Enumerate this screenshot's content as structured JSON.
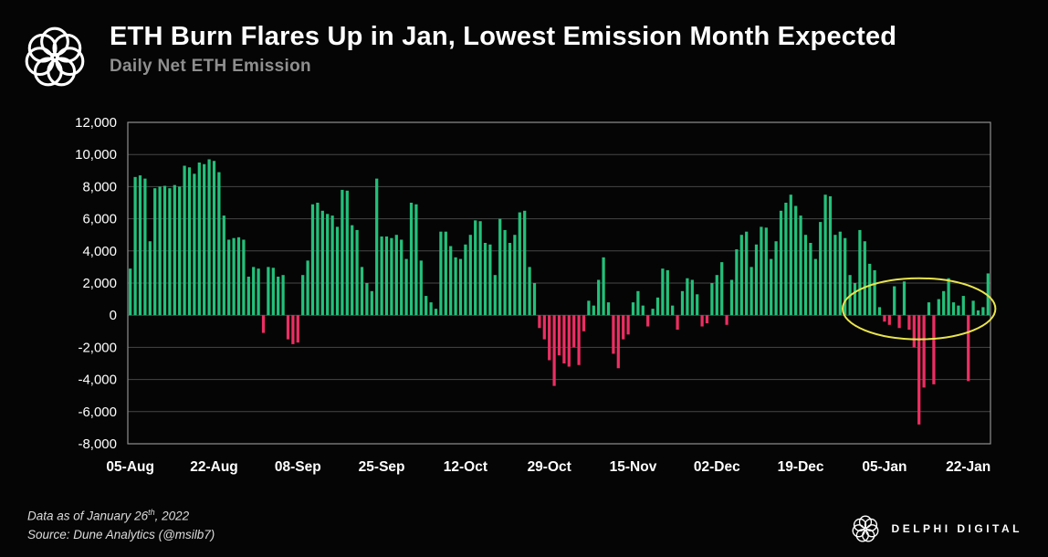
{
  "header": {
    "title": "ETH Burn Flares Up in Jan, Lowest Emission Month Expected",
    "subtitle": "Daily Net ETH Emission"
  },
  "footer": {
    "data_as_of_prefix": "Data as of January 26",
    "data_as_of_sup": "th",
    "data_as_of_suffix": ", 2022",
    "source": "Source:  Dune Analytics (@msilb7)",
    "brand": "DELPHI DIGITAL"
  },
  "colors": {
    "positive": "#24c07a",
    "negative": "#ed2e63",
    "grid": "#464646",
    "plot_border": "#8f8f8f",
    "axis_text": "#ffffff",
    "annotation": "#e8e44c",
    "background": "#050505"
  },
  "chart_data": {
    "type": "bar",
    "title": "Daily Net ETH Emission",
    "xlabel": "",
    "ylabel": "",
    "ylim": [
      -8000,
      12000
    ],
    "y_ticks": [
      12000,
      10000,
      8000,
      6000,
      4000,
      2000,
      0,
      -2000,
      -4000,
      -6000,
      -8000
    ],
    "grid": true,
    "legend": false,
    "start_date": "2021-08-05",
    "x_ticks": [
      {
        "index": 0,
        "label": "05-Aug"
      },
      {
        "index": 17,
        "label": "22-Aug"
      },
      {
        "index": 34,
        "label": "08-Sep"
      },
      {
        "index": 51,
        "label": "25-Sep"
      },
      {
        "index": 68,
        "label": "12-Oct"
      },
      {
        "index": 85,
        "label": "29-Oct"
      },
      {
        "index": 102,
        "label": "15-Nov"
      },
      {
        "index": 119,
        "label": "02-Dec"
      },
      {
        "index": 136,
        "label": "19-Dec"
      },
      {
        "index": 153,
        "label": "05-Jan"
      },
      {
        "index": 170,
        "label": "22-Jan"
      }
    ],
    "values": [
      2900,
      8600,
      8700,
      8500,
      4600,
      7900,
      8000,
      8050,
      7900,
      8100,
      8000,
      9300,
      9200,
      8800,
      9500,
      9400,
      9700,
      9600,
      8900,
      6200,
      4700,
      4800,
      4850,
      4700,
      2400,
      3000,
      2900,
      -1100,
      3000,
      2950,
      2400,
      2500,
      -1500,
      -1800,
      -1700,
      2500,
      3400,
      6900,
      7000,
      6500,
      6300,
      6200,
      5500,
      7800,
      7750,
      5600,
      5300,
      3000,
      2000,
      1500,
      8500,
      4900,
      4900,
      4800,
      5000,
      4700,
      3500,
      7000,
      6900,
      3400,
      1200,
      800,
      400,
      5200,
      5200,
      4300,
      3600,
      3500,
      4400,
      5000,
      5900,
      5850,
      4500,
      4400,
      2500,
      6000,
      5300,
      4500,
      5000,
      6400,
      6500,
      3000,
      2000,
      -800,
      -1500,
      -2800,
      -4400,
      -2500,
      -3000,
      -3200,
      -2000,
      -3100,
      -1000,
      900,
      600,
      2200,
      3600,
      800,
      -2400,
      -3300,
      -1500,
      -1200,
      800,
      1500,
      600,
      -700,
      400,
      1100,
      2900,
      2800,
      600,
      -900,
      1500,
      2300,
      2200,
      1300,
      -700,
      -500,
      2000,
      2500,
      3300,
      -600,
      2200,
      4100,
      5000,
      5200,
      3000,
      4400,
      5500,
      5450,
      3500,
      4600,
      6500,
      7000,
      7500,
      6800,
      6200,
      5000,
      4500,
      3500,
      5800,
      7500,
      7400,
      5000,
      5200,
      4800,
      2500,
      2000,
      5300,
      4600,
      3200,
      2800,
      500,
      -400,
      -600,
      1800,
      -800,
      2100,
      -900,
      -2000,
      -6800,
      -4500,
      800,
      -4300,
      1000,
      1500,
      2300,
      800,
      600,
      1200,
      -4100,
      900,
      300,
      500,
      2600
    ],
    "annotation_ellipse": {
      "center_index": 160,
      "center_value": 400,
      "rx_points": 15.5,
      "ry_value": 1900
    }
  }
}
